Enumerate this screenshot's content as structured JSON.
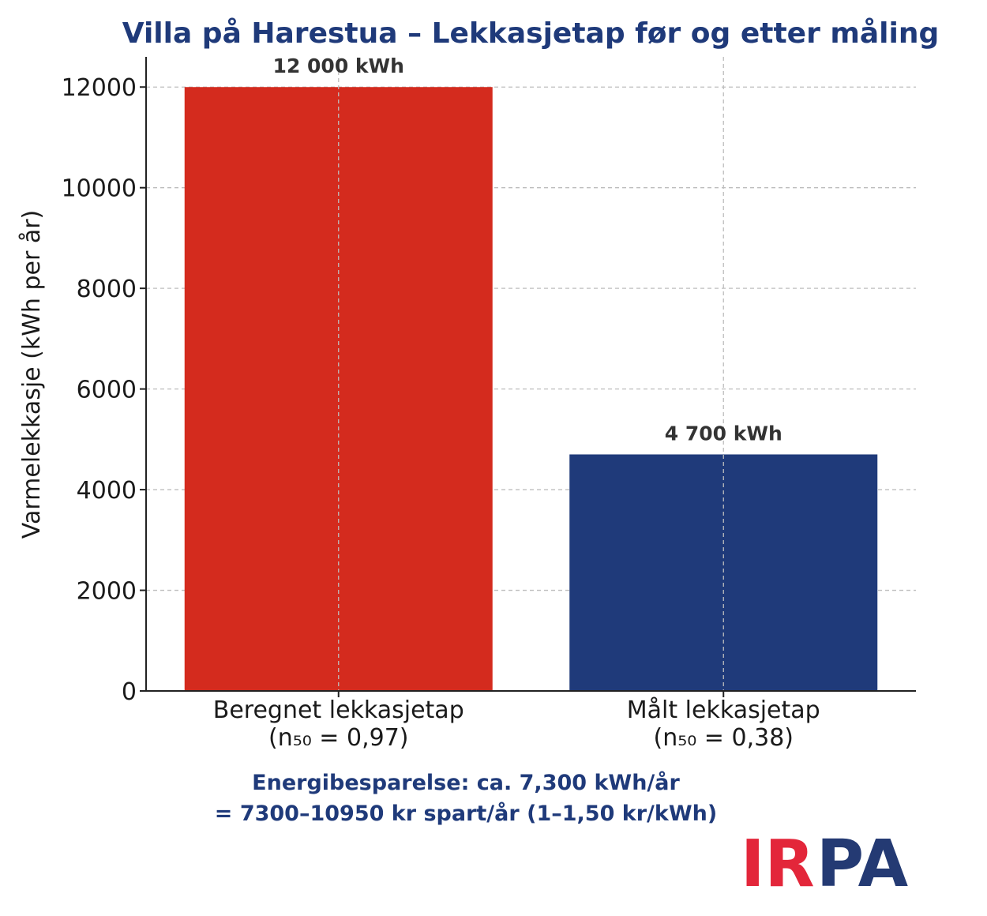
{
  "chart_data": {
    "type": "bar",
    "title": "Villa på Harestua – Lekkasjetap før og etter måling",
    "ylabel": "Varmelekkasje (kWh per år)",
    "xlabel": "",
    "ylim": [
      0,
      12600
    ],
    "yticks": [
      0,
      2000,
      4000,
      6000,
      8000,
      10000,
      12000
    ],
    "grid": true,
    "categories": [
      [
        "Beregnet lekkasjetap",
        "(n₅₀ = 0,97)"
      ],
      [
        "Målt lekkasjetap",
        "(n₅₀ = 0,38)"
      ]
    ],
    "values": [
      12000,
      4700
    ],
    "data_labels": [
      "12 000 kWh",
      "4 700 kWh"
    ],
    "colors": [
      "#d42b1e",
      "#1f3a7a"
    ]
  },
  "annotation": {
    "line1": "Energibesparelse: ca. 7,300 kWh/år",
    "line2": "= 7300–10950 kr spart/år (1–1,50 kr/kWh)"
  },
  "logo": {
    "part1": "IR",
    "part2": "PA",
    "color1": "#e3263a",
    "color2": "#243a73"
  }
}
